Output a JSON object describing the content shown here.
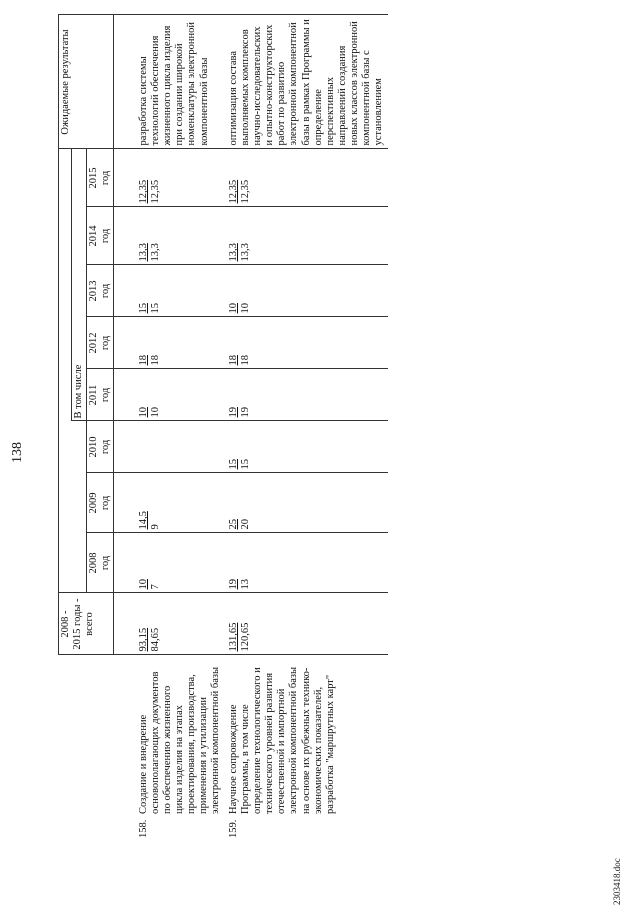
{
  "page_number": "138",
  "header": {
    "col_total_1": "2008 -",
    "col_total_2": "2015 годы -",
    "col_total_3": "всего",
    "in_that_number": "В том числе",
    "years": [
      "2008",
      "2009",
      "2010",
      "2011",
      "2012",
      "2013",
      "2014",
      "2015"
    ],
    "year_unit": "год",
    "expected_results": "Ожидаемые результаты"
  },
  "rows": [
    {
      "num": "158.",
      "name": "Создание и внедрение основополагающих документов по обеспечению жизненного цикла изделия на этапах проектирования, производства, применения и утилизации электронной компонентной базы",
      "total": [
        "93,15",
        "84,65"
      ],
      "y2008": [
        "10",
        "7"
      ],
      "y2009": [
        "14,5",
        "9"
      ],
      "y2010": [
        "",
        ""
      ],
      "y2011": [
        "10",
        "10"
      ],
      "y2012": [
        "18",
        "18"
      ],
      "y2013": [
        "15",
        "15"
      ],
      "y2014": [
        "13,3",
        "13,3"
      ],
      "y2015": [
        "12,35",
        "12,35"
      ],
      "result": "разработка системы технологий обеспечения жизненного цикла изделия при создании широкой номенклатуры электронной компонентной базы"
    },
    {
      "num": "159.",
      "name": "Научное сопровождение Программы, в том числе определение технологического и технического уровней развития отечественной и импортной электронной компонентной базы на основе их рубежных технико-экономических показателей, разработка \"маршрутных карт\"",
      "total": [
        "131,65",
        "120,65"
      ],
      "y2008": [
        "19",
        "13"
      ],
      "y2009": [
        "25",
        "20"
      ],
      "y2010": [
        "15",
        "15"
      ],
      "y2011": [
        "19",
        "19"
      ],
      "y2012": [
        "18",
        "18"
      ],
      "y2013": [
        "10",
        "10"
      ],
      "y2014": [
        "13,3",
        "13,3"
      ],
      "y2015": [
        "12,35",
        "12,35"
      ],
      "result": "оптимизация состава выполняемых комплексов научно-исследовательских и опытно-конструкторских работ по развитию электронной компонентной базы в рамках Программы и определение перспективных направлений создания новых классов электронной компонентной базы с установлением"
    }
  ],
  "footer": "2303418.doc"
}
